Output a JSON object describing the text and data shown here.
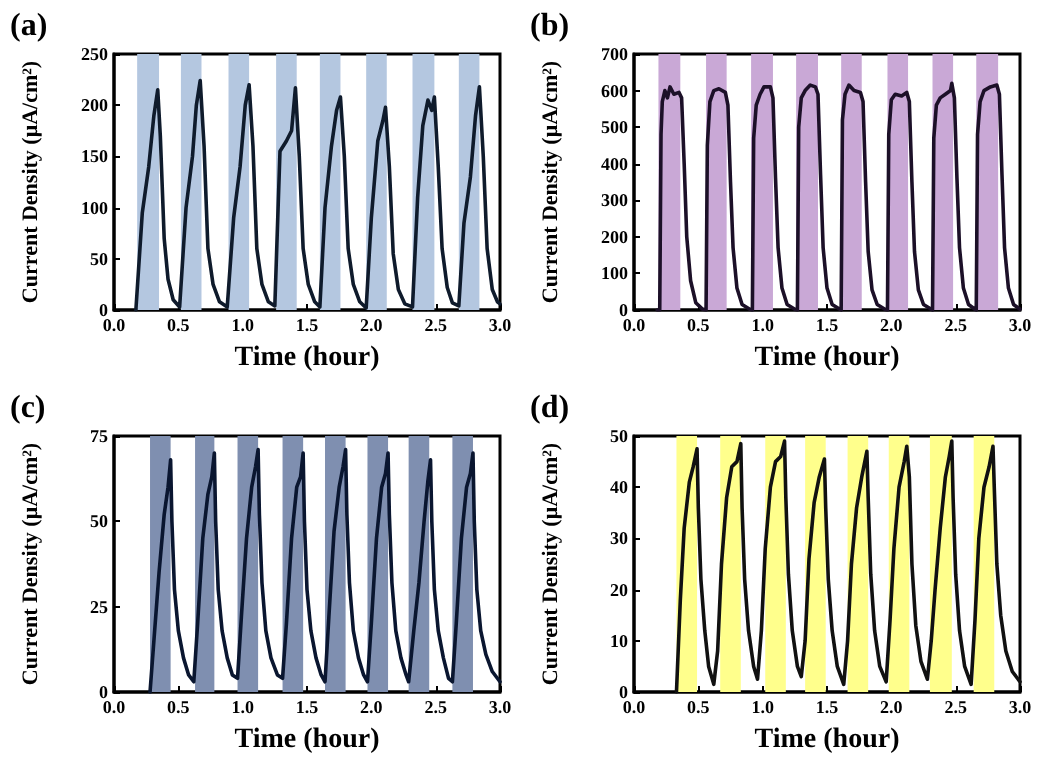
{
  "chart_data": [
    {
      "type": "line",
      "title": "(a)",
      "xlabel": "Time (hour)",
      "ylabel": "Current Density (μA/cm²)",
      "xlim": [
        0,
        3
      ],
      "xticks": [
        {
          "value": 0,
          "label": "0.0"
        },
        0.5,
        {
          "value": 1,
          "label": "1.0"
        },
        1.5,
        {
          "value": 2,
          "label": "2.0"
        },
        2.5,
        {
          "value": 3,
          "label": "3.0"
        }
      ],
      "ylim": [
        0,
        250
      ],
      "yticks": [
        0,
        50,
        100,
        150,
        200,
        250
      ],
      "bands": [
        {
          "axis": "x",
          "from": 0.18,
          "to": 0.35,
          "color": "#b4c7e0"
        },
        {
          "axis": "x",
          "from": 0.52,
          "to": 0.68,
          "color": "#b4c7e0"
        },
        {
          "axis": "x",
          "from": 0.89,
          "to": 1.05,
          "color": "#b4c7e0"
        },
        {
          "axis": "x",
          "from": 1.26,
          "to": 1.42,
          "color": "#b4c7e0"
        },
        {
          "axis": "x",
          "from": 1.6,
          "to": 1.76,
          "color": "#b4c7e0"
        },
        {
          "axis": "x",
          "from": 1.96,
          "to": 2.12,
          "color": "#b4c7e0"
        },
        {
          "axis": "x",
          "from": 2.32,
          "to": 2.49,
          "color": "#b4c7e0"
        },
        {
          "axis": "x",
          "from": 2.68,
          "to": 2.84,
          "color": "#b4c7e0"
        }
      ],
      "series": [
        {
          "color": "#0f1b2c",
          "x": [
            0.17,
            0.22,
            0.27,
            0.31,
            0.34,
            0.36,
            0.39,
            0.42,
            0.46,
            0.51,
            0.56,
            0.61,
            0.64,
            0.67,
            0.7,
            0.73,
            0.77,
            0.82,
            0.88,
            0.93,
            0.98,
            1.02,
            1.05,
            1.08,
            1.11,
            1.15,
            1.2,
            1.25,
            1.29,
            1.34,
            1.38,
            1.41,
            1.44,
            1.47,
            1.51,
            1.56,
            1.6,
            1.64,
            1.69,
            1.73,
            1.76,
            1.79,
            1.82,
            1.86,
            1.91,
            1.96,
            2.0,
            2.05,
            2.09,
            2.11,
            2.14,
            2.17,
            2.21,
            2.26,
            2.32,
            2.36,
            2.4,
            2.44,
            2.47,
            2.49,
            2.52,
            2.55,
            2.59,
            2.63,
            2.68,
            2.72,
            2.77,
            2.81,
            2.84,
            2.87,
            2.9,
            2.94,
            2.98,
            3.0
          ],
          "values": [
            0,
            95,
            140,
            190,
            215,
            170,
            70,
            30,
            10,
            3,
            100,
            150,
            200,
            224,
            160,
            60,
            25,
            8,
            3,
            90,
            140,
            200,
            220,
            160,
            60,
            25,
            8,
            4,
            155,
            165,
            175,
            217,
            150,
            60,
            25,
            8,
            3,
            100,
            160,
            195,
            208,
            150,
            60,
            25,
            8,
            2,
            90,
            165,
            185,
            198,
            140,
            55,
            20,
            6,
            3,
            110,
            180,
            205,
            195,
            208,
            140,
            60,
            22,
            7,
            4,
            85,
            130,
            190,
            218,
            150,
            60,
            20,
            8,
            6
          ]
        }
      ]
    },
    {
      "type": "line",
      "title": "(b)",
      "xlabel": "Time (hour)",
      "ylabel": "Current Density (μA/cm²)",
      "xlim": [
        0,
        3
      ],
      "xticks": [
        {
          "value": 0,
          "label": "0.0"
        },
        0.5,
        {
          "value": 1,
          "label": "1.0"
        },
        1.5,
        {
          "value": 2,
          "label": "2.0"
        },
        2.5,
        {
          "value": 3,
          "label": "3.0"
        }
      ],
      "ylim": [
        0,
        700
      ],
      "yticks": [
        0,
        100,
        200,
        300,
        400,
        500,
        600,
        700
      ],
      "bands": [
        {
          "axis": "x",
          "from": 0.19,
          "to": 0.36,
          "color": "#c9a8d6"
        },
        {
          "axis": "x",
          "from": 0.56,
          "to": 0.72,
          "color": "#c9a8d6"
        },
        {
          "axis": "x",
          "from": 0.91,
          "to": 1.08,
          "color": "#c9a8d6"
        },
        {
          "axis": "x",
          "from": 1.26,
          "to": 1.43,
          "color": "#c9a8d6"
        },
        {
          "axis": "x",
          "from": 1.61,
          "to": 1.77,
          "color": "#c9a8d6"
        },
        {
          "axis": "x",
          "from": 1.97,
          "to": 2.13,
          "color": "#c9a8d6"
        },
        {
          "axis": "x",
          "from": 2.32,
          "to": 2.48,
          "color": "#c9a8d6"
        },
        {
          "axis": "x",
          "from": 2.66,
          "to": 2.83,
          "color": "#c9a8d6"
        }
      ],
      "series": [
        {
          "color": "#1c1028",
          "x": [
            0.18,
            0.2,
            0.21,
            0.22,
            0.24,
            0.26,
            0.28,
            0.31,
            0.35,
            0.37,
            0.39,
            0.41,
            0.44,
            0.48,
            0.53,
            0.56,
            0.57,
            0.59,
            0.62,
            0.66,
            0.71,
            0.73,
            0.75,
            0.77,
            0.8,
            0.84,
            0.9,
            0.92,
            0.93,
            0.95,
            0.98,
            1.01,
            1.06,
            1.08,
            1.1,
            1.12,
            1.15,
            1.19,
            1.25,
            1.27,
            1.28,
            1.3,
            1.33,
            1.37,
            1.41,
            1.43,
            1.45,
            1.47,
            1.5,
            1.54,
            1.6,
            1.61,
            1.62,
            1.64,
            1.67,
            1.71,
            1.76,
            1.78,
            1.8,
            1.82,
            1.85,
            1.89,
            1.95,
            1.97,
            1.98,
            2.0,
            2.03,
            2.08,
            2.12,
            2.14,
            2.16,
            2.18,
            2.21,
            2.25,
            2.31,
            2.32,
            2.33,
            2.35,
            2.38,
            2.42,
            2.46,
            2.47,
            2.49,
            2.51,
            2.53,
            2.56,
            2.6,
            2.65,
            2.66,
            2.67,
            2.69,
            2.72,
            2.77,
            2.82,
            2.84,
            2.86,
            2.88,
            2.91,
            2.95,
            3.0
          ],
          "values": [
            0,
            0,
            480,
            570,
            600,
            580,
            610,
            590,
            595,
            580,
            400,
            200,
            80,
            20,
            3,
            0,
            450,
            570,
            600,
            605,
            595,
            560,
            350,
            170,
            60,
            15,
            2,
            0,
            470,
            560,
            590,
            610,
            610,
            580,
            360,
            170,
            60,
            15,
            2,
            0,
            500,
            580,
            600,
            615,
            610,
            590,
            370,
            170,
            60,
            15,
            2,
            0,
            520,
            590,
            615,
            600,
            595,
            570,
            350,
            160,
            55,
            15,
            2,
            0,
            480,
            575,
            590,
            585,
            595,
            570,
            350,
            160,
            55,
            15,
            2,
            0,
            470,
            560,
            580,
            590,
            600,
            620,
            580,
            360,
            170,
            60,
            15,
            2,
            0,
            480,
            570,
            600,
            610,
            615,
            590,
            370,
            170,
            60,
            15,
            2
          ]
        }
      ]
    },
    {
      "type": "line",
      "title": "(c)",
      "xlabel": "Time (hour)",
      "ylabel": "Current Density (μA/cm²)",
      "xlim": [
        0,
        3
      ],
      "xticks": [
        {
          "value": 0,
          "label": "0.0"
        },
        0.5,
        {
          "value": 1,
          "label": "1.0"
        },
        1.5,
        {
          "value": 2,
          "label": "2.0"
        },
        2.5,
        {
          "value": 3,
          "label": "3.0"
        }
      ],
      "ylim": [
        0,
        75
      ],
      "yticks": [
        0,
        25,
        50,
        75
      ],
      "bands": [
        {
          "axis": "x",
          "from": 0.28,
          "to": 0.44,
          "color": "#7f8fb0"
        },
        {
          "axis": "x",
          "from": 0.63,
          "to": 0.78,
          "color": "#7f8fb0"
        },
        {
          "axis": "x",
          "from": 0.96,
          "to": 1.12,
          "color": "#7f8fb0"
        },
        {
          "axis": "x",
          "from": 1.31,
          "to": 1.47,
          "color": "#7f8fb0"
        },
        {
          "axis": "x",
          "from": 1.64,
          "to": 1.8,
          "color": "#7f8fb0"
        },
        {
          "axis": "x",
          "from": 1.97,
          "to": 2.13,
          "color": "#7f8fb0"
        },
        {
          "axis": "x",
          "from": 2.29,
          "to": 2.45,
          "color": "#7f8fb0"
        },
        {
          "axis": "x",
          "from": 2.63,
          "to": 2.79,
          "color": "#7f8fb0"
        }
      ],
      "series": [
        {
          "color": "#0a1630",
          "x": [
            0.28,
            0.31,
            0.35,
            0.39,
            0.42,
            0.44,
            0.45,
            0.47,
            0.5,
            0.54,
            0.58,
            0.62,
            0.65,
            0.69,
            0.73,
            0.76,
            0.78,
            0.79,
            0.81,
            0.84,
            0.88,
            0.92,
            0.96,
            0.99,
            1.03,
            1.07,
            1.1,
            1.12,
            1.13,
            1.15,
            1.18,
            1.22,
            1.27,
            1.31,
            1.34,
            1.38,
            1.42,
            1.45,
            1.47,
            1.48,
            1.5,
            1.53,
            1.57,
            1.61,
            1.64,
            1.67,
            1.71,
            1.75,
            1.78,
            1.8,
            1.81,
            1.83,
            1.86,
            1.9,
            1.94,
            1.97,
            2.0,
            2.04,
            2.08,
            2.11,
            2.13,
            2.14,
            2.16,
            2.19,
            2.23,
            2.27,
            2.29,
            2.33,
            2.37,
            2.41,
            2.44,
            2.46,
            2.47,
            2.49,
            2.52,
            2.56,
            2.6,
            2.63,
            2.66,
            2.7,
            2.74,
            2.77,
            2.79,
            2.8,
            2.82,
            2.85,
            2.89,
            2.94,
            3.0
          ],
          "values": [
            0,
            15,
            35,
            52,
            60,
            68,
            50,
            30,
            18,
            10,
            5,
            3,
            20,
            45,
            58,
            63,
            70,
            50,
            30,
            18,
            10,
            5,
            4,
            22,
            45,
            60,
            66,
            71,
            52,
            32,
            18,
            10,
            5,
            4,
            20,
            45,
            60,
            63,
            70,
            50,
            30,
            18,
            10,
            5,
            3,
            22,
            47,
            60,
            66,
            71,
            52,
            32,
            18,
            10,
            5,
            3,
            20,
            45,
            60,
            64,
            70,
            52,
            32,
            18,
            10,
            5,
            3,
            18,
            32,
            50,
            62,
            68,
            50,
            30,
            18,
            10,
            4,
            3,
            20,
            45,
            60,
            64,
            70,
            50,
            30,
            18,
            11,
            6,
            3
          ]
        }
      ]
    },
    {
      "type": "line",
      "title": "(d)",
      "xlabel": "Time (hour)",
      "ylabel": "Current Density (μA/cm²)",
      "xlim": [
        0,
        3
      ],
      "xticks": [
        {
          "value": 0,
          "label": "0.0"
        },
        0.5,
        {
          "value": 1,
          "label": "1.0"
        },
        1.5,
        {
          "value": 2,
          "label": "2.0"
        },
        2.5,
        {
          "value": 3,
          "label": "3.0"
        }
      ],
      "ylim": [
        0,
        50
      ],
      "yticks": [
        0,
        10,
        20,
        30,
        40,
        50
      ],
      "bands": [
        {
          "axis": "x",
          "from": 0.33,
          "to": 0.49,
          "color": "#ffff8c"
        },
        {
          "axis": "x",
          "from": 0.67,
          "to": 0.83,
          "color": "#ffff8c"
        },
        {
          "axis": "x",
          "from": 1.02,
          "to": 1.18,
          "color": "#ffff8c"
        },
        {
          "axis": "x",
          "from": 1.33,
          "to": 1.49,
          "color": "#ffff8c"
        },
        {
          "axis": "x",
          "from": 1.66,
          "to": 1.82,
          "color": "#ffff8c"
        },
        {
          "axis": "x",
          "from": 1.98,
          "to": 2.14,
          "color": "#ffff8c"
        },
        {
          "axis": "x",
          "from": 2.3,
          "to": 2.47,
          "color": "#ffff8c"
        },
        {
          "axis": "x",
          "from": 2.64,
          "to": 2.8,
          "color": "#ffff8c"
        }
      ],
      "series": [
        {
          "color": "#111111",
          "x": [
            0.33,
            0.36,
            0.39,
            0.43,
            0.46,
            0.49,
            0.5,
            0.52,
            0.55,
            0.58,
            0.62,
            0.65,
            0.68,
            0.72,
            0.76,
            0.8,
            0.83,
            0.84,
            0.86,
            0.89,
            0.93,
            0.96,
            0.99,
            1.02,
            1.06,
            1.1,
            1.14,
            1.17,
            1.18,
            1.2,
            1.23,
            1.27,
            1.3,
            1.33,
            1.36,
            1.4,
            1.44,
            1.48,
            1.49,
            1.51,
            1.54,
            1.58,
            1.63,
            1.66,
            1.69,
            1.73,
            1.77,
            1.81,
            1.82,
            1.84,
            1.87,
            1.91,
            1.96,
            1.99,
            2.02,
            2.06,
            2.1,
            2.12,
            2.14,
            2.16,
            2.19,
            2.23,
            2.28,
            2.31,
            2.34,
            2.38,
            2.42,
            2.45,
            2.47,
            2.48,
            2.5,
            2.53,
            2.57,
            2.62,
            2.65,
            2.68,
            2.72,
            2.76,
            2.79,
            2.8,
            2.82,
            2.85,
            2.89,
            2.94,
            3.0
          ],
          "values": [
            0,
            18,
            32,
            41,
            44,
            47.5,
            36,
            22,
            12,
            5,
            1.5,
            8,
            25,
            38,
            44,
            45,
            48.5,
            36,
            22,
            12,
            5,
            2.5,
            12,
            28,
            40,
            45,
            46,
            49,
            38,
            23,
            12,
            5,
            3,
            10,
            26,
            37,
            42,
            45.5,
            36,
            22,
            12,
            5,
            1.5,
            10,
            25,
            36,
            42,
            47,
            38,
            23,
            12,
            5,
            2,
            14,
            28,
            40,
            45,
            48,
            42,
            25,
            13,
            6,
            2.5,
            10,
            20,
            32,
            42,
            46,
            49,
            38,
            23,
            12,
            5,
            1.5,
            14,
            30,
            40,
            44,
            48,
            40,
            25,
            15,
            8,
            4,
            2
          ]
        }
      ]
    }
  ]
}
